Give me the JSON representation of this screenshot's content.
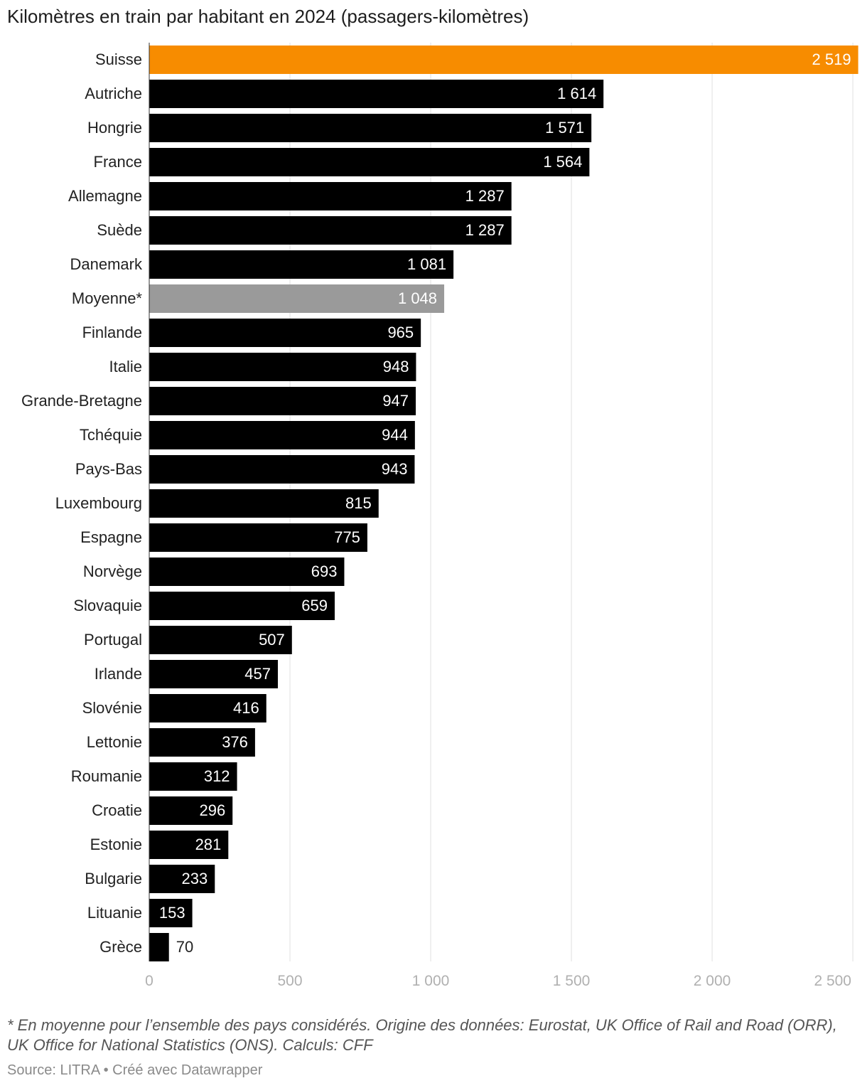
{
  "title": "Kilomètres en train par habitant en 2024 (passagers-kilomètres)",
  "footnote": "* En moyenne pour l’ensemble des pays considérés. Origine des données: Eurostat, UK Office of Rail and Road (ORR), UK Office for National Statistics (ONS). Calculs: CFF",
  "source": "Source: LITRA • Créé avec Datawrapper",
  "colors": {
    "highlight": "#f78c00",
    "average": "#9a9a9a",
    "default": "#000000",
    "grid": "#e0e0e0",
    "tick": "#b0b0b0"
  },
  "chart_data": {
    "type": "bar",
    "orientation": "horizontal",
    "xlim": [
      0,
      2520
    ],
    "grid": true,
    "x_ticks": [
      0,
      500,
      1000,
      1500,
      2000,
      2500
    ],
    "x_tick_labels": [
      "0",
      "500",
      "1 000",
      "1 500",
      "2 000",
      "2 500"
    ],
    "categories": [
      "Suisse",
      "Autriche",
      "Hongrie",
      "France",
      "Allemagne",
      "Suède",
      "Danemark",
      "Moyenne*",
      "Finlande",
      "Italie",
      "Grande-Bretagne",
      "Tchéquie",
      "Pays-Bas",
      "Luxembourg",
      "Espagne",
      "Norvège",
      "Slovaquie",
      "Portugal",
      "Irlande",
      "Slovénie",
      "Lettonie",
      "Roumanie",
      "Croatie",
      "Estonie",
      "Bulgarie",
      "Lituanie",
      "Grèce"
    ],
    "values": [
      2519,
      1614,
      1571,
      1564,
      1287,
      1287,
      1081,
      1048,
      965,
      948,
      947,
      944,
      943,
      815,
      775,
      693,
      659,
      507,
      457,
      416,
      376,
      312,
      296,
      281,
      233,
      153,
      70
    ],
    "value_labels": [
      "2 519",
      "1 614",
      "1 571",
      "1 564",
      "1 287",
      "1 287",
      "1 081",
      "1 048",
      "965",
      "948",
      "947",
      "944",
      "943",
      "815",
      "775",
      "693",
      "659",
      "507",
      "457",
      "416",
      "376",
      "312",
      "296",
      "281",
      "233",
      "153",
      "70"
    ],
    "bar_color_roles": [
      "highlight",
      "default",
      "default",
      "default",
      "default",
      "default",
      "default",
      "average",
      "default",
      "default",
      "default",
      "default",
      "default",
      "default",
      "default",
      "default",
      "default",
      "default",
      "default",
      "default",
      "default",
      "default",
      "default",
      "default",
      "default",
      "default",
      "default"
    ]
  }
}
